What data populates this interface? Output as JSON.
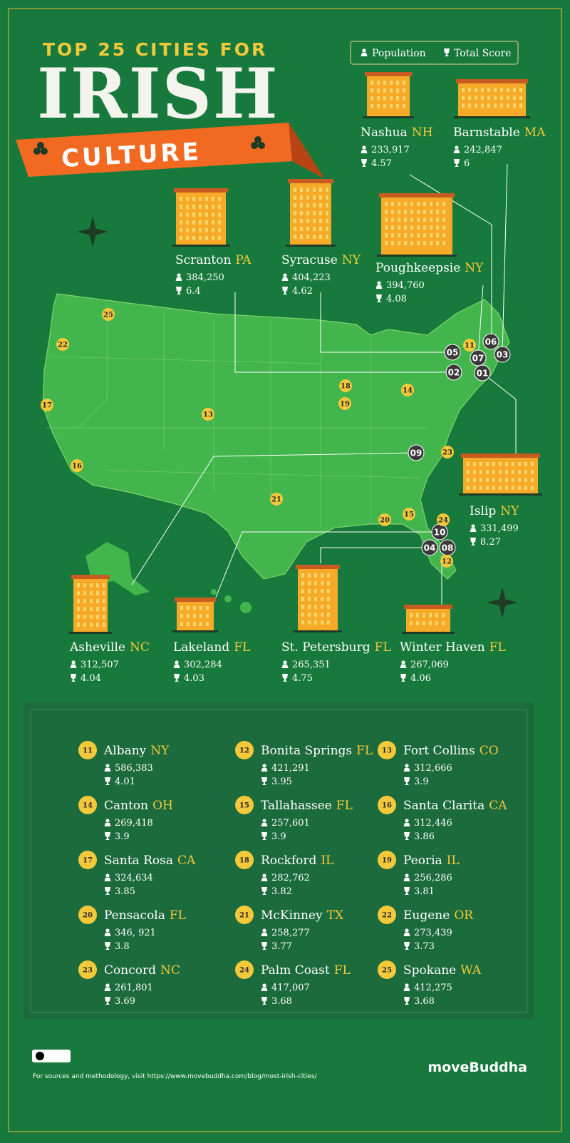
{
  "header": {
    "line1": "TOP 25 CITIES FOR",
    "line2": "IRISH",
    "line3": "CULTURE"
  },
  "legend": {
    "population": "Population",
    "score": "Total Score"
  },
  "featured": [
    {
      "rank": "01",
      "city": "Islip",
      "state": "NY",
      "population": "331,499",
      "score": 8.27
    },
    {
      "rank": "02",
      "city": "Scranton",
      "state": "PA",
      "population": "384,250",
      "score": 6.4
    },
    {
      "rank": "03",
      "city": "Barnstable",
      "state": "MA",
      "population": "242,847",
      "score": 6
    },
    {
      "rank": "04",
      "city": "St. Petersburg",
      "state": "FL",
      "population": "265,351",
      "score": 4.75
    },
    {
      "rank": "05",
      "city": "Syracuse",
      "state": "NY",
      "population": "404,223",
      "score": 4.62
    },
    {
      "rank": "06",
      "city": "Nashua",
      "state": "NH",
      "population": "233,917",
      "score": 4.57
    },
    {
      "rank": "07",
      "city": "Poughkeepsie",
      "state": "NY",
      "population": "394,760",
      "score": 4.08
    },
    {
      "rank": "08",
      "city": "Winter Haven",
      "state": "FL",
      "population": "267,069",
      "score": 4.06
    },
    {
      "rank": "09",
      "city": "Asheville",
      "state": "NC",
      "population": "312,507",
      "score": 4.04
    },
    {
      "rank": "10",
      "city": "Lakeland",
      "state": "FL",
      "population": "302,284",
      "score": 4.03
    }
  ],
  "list": [
    {
      "rank": "11",
      "city": "Albany",
      "state": "NY",
      "population": "586,383",
      "score": 4.01
    },
    {
      "rank": "12",
      "city": "Bonita Springs",
      "state": "FL",
      "population": "421,291",
      "score": 3.95
    },
    {
      "rank": "13",
      "city": "Fort Collins",
      "state": "CO",
      "population": "312,666",
      "score": 3.9
    },
    {
      "rank": "14",
      "city": "Canton",
      "state": "OH",
      "population": "269,418",
      "score": 3.9
    },
    {
      "rank": "15",
      "city": "Tallahassee",
      "state": "FL",
      "population": "257,601",
      "score": 3.9
    },
    {
      "rank": "16",
      "city": "Santa Clarita",
      "state": "CA",
      "population": "312,446",
      "score": 3.86
    },
    {
      "rank": "17",
      "city": "Santa Rosa",
      "state": "CA",
      "population": "324,634",
      "score": 3.85
    },
    {
      "rank": "18",
      "city": "Rockford",
      "state": "IL",
      "population": "282,762",
      "score": 3.82
    },
    {
      "rank": "19",
      "city": "Peoria",
      "state": "IL",
      "population": "256,286",
      "score": 3.81
    },
    {
      "rank": "20",
      "city": "Pensacola",
      "state": "FL",
      "population": "346, 921",
      "score": 3.8
    },
    {
      "rank": "21",
      "city": "McKinney",
      "state": "TX",
      "population": "258,277",
      "score": 3.77
    },
    {
      "rank": "22",
      "city": "Eugene",
      "state": "OR",
      "population": "273,439",
      "score": 3.73
    },
    {
      "rank": "23",
      "city": "Concord",
      "state": "NC",
      "population": "261,801",
      "score": 3.69
    },
    {
      "rank": "24",
      "city": "Palm Coast",
      "state": "FL",
      "population": "417,007",
      "score": 3.68
    },
    {
      "rank": "25",
      "city": "Spokane",
      "state": "WA",
      "population": "412,275",
      "score": 3.68
    }
  ],
  "footer": {
    "source": "For sources and methodology, visit https://www.movebuddha.com/blog/most-irish-cities/",
    "brand": "moveBuddha"
  }
}
